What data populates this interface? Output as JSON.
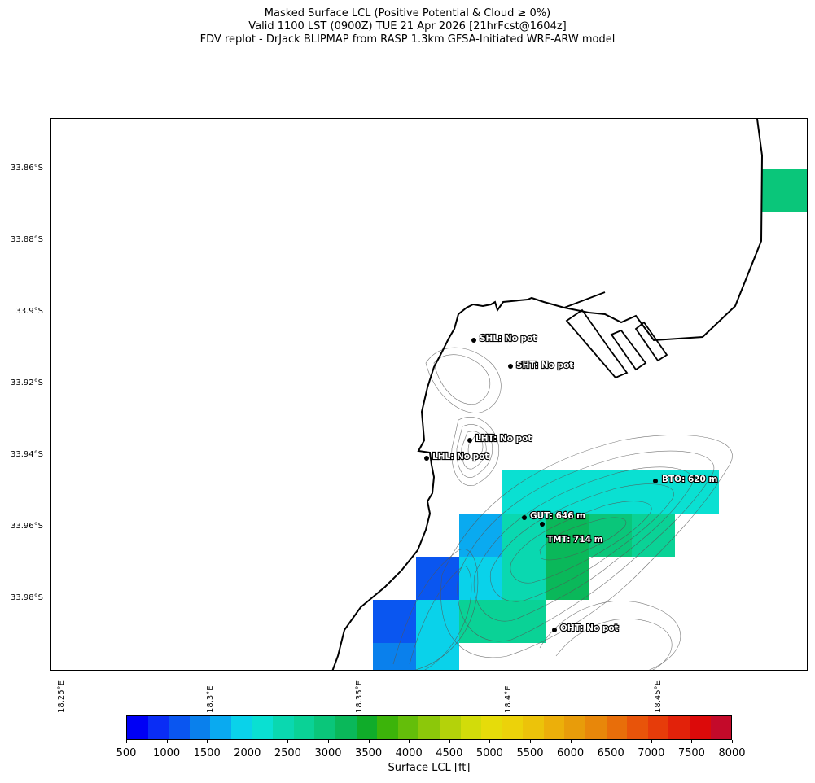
{
  "header": {
    "line1": "Masked Surface LCL (Positive Potential & Cloud ≥ 0%)",
    "line2": "Valid 1100 LST (0900Z) TUE 21 Apr 2026 [21hrFcst@1604z]",
    "line3": "FDV replot - DrJack BLIPMAP from RASP 1.3km GFSA-Initiated WRF-ARW model"
  },
  "axes": {
    "lat_ticks": [
      "33.86°S",
      "33.88°S",
      "33.9°S",
      "33.92°S",
      "33.94°S",
      "33.96°S",
      "33.98°S"
    ],
    "lon_ticks": [
      "18.25°E",
      "18.3°E",
      "18.35°E",
      "18.4°E",
      "18.45°E"
    ]
  },
  "sites": [
    {
      "label": "SHL: No pot"
    },
    {
      "label": "SHT: No pot"
    },
    {
      "label": "LHT: No pot"
    },
    {
      "label": "LHL: No pot"
    },
    {
      "label": "BTO: 620 m"
    },
    {
      "label": "GUT: 646 m"
    },
    {
      "label": "TMT: 714 m"
    },
    {
      "label": "OHT: No pot"
    }
  ],
  "colorbar": {
    "label": "Surface LCL [ft]",
    "ticks": [
      "500",
      "1000",
      "1500",
      "2000",
      "2500",
      "3000",
      "3500",
      "4000",
      "4500",
      "5000",
      "5500",
      "6000",
      "6500",
      "7000",
      "7500",
      "8000"
    ],
    "colors": [
      "#0000f5",
      "#0a2df5",
      "#0a56f0",
      "#0a80ec",
      "#0aaaf0",
      "#0ad2ea",
      "#0ae0d2",
      "#0ad8b0",
      "#0ad296",
      "#0ac67a",
      "#0ab85a",
      "#10ac2a",
      "#3cb40a",
      "#64be0a",
      "#8cc80a",
      "#b4d20a",
      "#d2dc0a",
      "#e6dc0a",
      "#ecd20a",
      "#ecc30a",
      "#ecaf0a",
      "#e89c0a",
      "#e8870a",
      "#e86e0a",
      "#e8540a",
      "#e63c0a",
      "#e2220a",
      "#dc0a0a",
      "#c40a2a"
    ]
  }
}
